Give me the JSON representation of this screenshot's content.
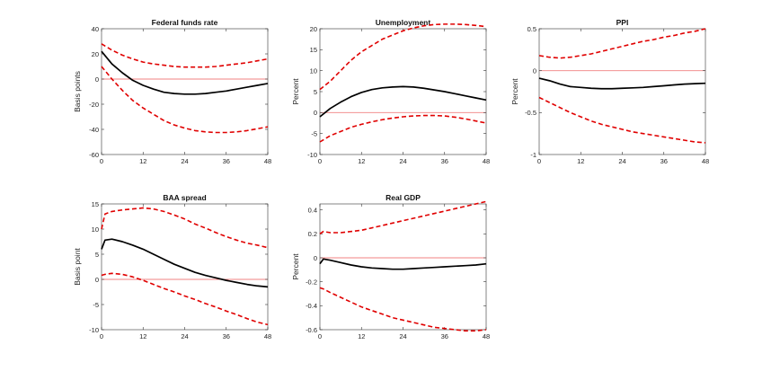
{
  "figure": {
    "colors": {
      "response": "#000000",
      "band": "#e00000",
      "zero_line": "#f08080",
      "axis": "#333333"
    }
  },
  "chart_data": [
    {
      "type": "line",
      "title": "Federal funds rate",
      "xlabel": "",
      "ylabel": "Basis points",
      "xlim": [
        0,
        48
      ],
      "ylim": [
        -60,
        40
      ],
      "xticks": [
        0,
        12,
        24,
        36,
        48
      ],
      "yticks": [
        -60,
        -40,
        -20,
        0,
        20,
        40
      ],
      "zero_line": 0,
      "series": [
        {
          "name": "response",
          "style": "solid",
          "x": [
            0,
            3,
            6,
            9,
            12,
            15,
            18,
            21,
            24,
            27,
            30,
            33,
            36,
            39,
            42,
            45,
            48
          ],
          "values": [
            22,
            12,
            5,
            -1,
            -5,
            -8,
            -10.5,
            -11.5,
            -12,
            -12,
            -11.5,
            -10.5,
            -9.5,
            -8,
            -6.5,
            -5,
            -3.5
          ]
        },
        {
          "name": "upper band",
          "style": "dashed",
          "x": [
            0,
            3,
            6,
            9,
            12,
            15,
            18,
            21,
            24,
            27,
            30,
            33,
            36,
            39,
            42,
            45,
            48
          ],
          "values": [
            28,
            23,
            19,
            16,
            13.5,
            12,
            11,
            10,
            9.5,
            9.5,
            9.5,
            10,
            11,
            12,
            13,
            14.5,
            16
          ]
        },
        {
          "name": "lower band",
          "style": "dashed",
          "x": [
            0,
            3,
            6,
            9,
            12,
            15,
            18,
            21,
            24,
            27,
            30,
            33,
            36,
            39,
            42,
            45,
            48
          ],
          "values": [
            10,
            0,
            -9,
            -17,
            -23,
            -28,
            -33,
            -36.5,
            -39,
            -41,
            -42,
            -42.5,
            -42.5,
            -42,
            -41,
            -39.5,
            -38
          ]
        }
      ]
    },
    {
      "type": "line",
      "title": "Unemployment",
      "xlabel": "",
      "ylabel": "Percent",
      "xlim": [
        0,
        48
      ],
      "ylim": [
        -10,
        20
      ],
      "xticks": [
        0,
        12,
        24,
        36,
        48
      ],
      "yticks": [
        -10,
        -5,
        0,
        5,
        10,
        15,
        20
      ],
      "zero_line": 0,
      "series": [
        {
          "name": "response",
          "style": "solid",
          "x": [
            0,
            3,
            6,
            9,
            12,
            15,
            18,
            21,
            24,
            27,
            30,
            33,
            36,
            39,
            42,
            45,
            48
          ],
          "values": [
            -1,
            1,
            2.5,
            3.8,
            4.8,
            5.5,
            5.9,
            6.1,
            6.2,
            6.1,
            5.8,
            5.4,
            5,
            4.5,
            4,
            3.5,
            3
          ]
        },
        {
          "name": "upper band",
          "style": "dashed",
          "x": [
            0,
            3,
            6,
            9,
            12,
            15,
            18,
            21,
            24,
            27,
            30,
            33,
            36,
            39,
            42,
            45,
            48
          ],
          "values": [
            5.5,
            7.5,
            10,
            12.5,
            14.5,
            16,
            17.5,
            18.5,
            19.5,
            20.2,
            20.7,
            21,
            21.1,
            21.1,
            21,
            20.8,
            20.5
          ]
        },
        {
          "name": "lower band",
          "style": "dashed",
          "x": [
            0,
            3,
            6,
            9,
            12,
            15,
            18,
            21,
            24,
            27,
            30,
            33,
            36,
            39,
            42,
            45,
            48
          ],
          "values": [
            -7,
            -5.5,
            -4.5,
            -3.5,
            -2.8,
            -2.2,
            -1.7,
            -1.3,
            -1,
            -0.8,
            -0.7,
            -0.7,
            -0.8,
            -1.1,
            -1.5,
            -2,
            -2.5
          ]
        }
      ]
    },
    {
      "type": "line",
      "title": "PPI",
      "xlabel": "",
      "ylabel": "Percent",
      "xlim": [
        0,
        48
      ],
      "ylim": [
        -1,
        0.5
      ],
      "xticks": [
        0,
        12,
        24,
        36,
        48
      ],
      "yticks": [
        -1,
        -0.5,
        0,
        0.5
      ],
      "ytick_labels": [
        "-1",
        "-0.5",
        "0",
        "0.5"
      ],
      "zero_line": 0,
      "series": [
        {
          "name": "response",
          "style": "solid",
          "x": [
            0,
            3,
            6,
            9,
            12,
            15,
            18,
            21,
            24,
            27,
            30,
            33,
            36,
            39,
            42,
            45,
            48
          ],
          "values": [
            -0.09,
            -0.12,
            -0.16,
            -0.19,
            -0.2,
            -0.21,
            -0.215,
            -0.215,
            -0.21,
            -0.205,
            -0.2,
            -0.19,
            -0.18,
            -0.17,
            -0.16,
            -0.155,
            -0.15
          ]
        },
        {
          "name": "upper band",
          "style": "dashed",
          "x": [
            0,
            3,
            6,
            9,
            12,
            15,
            18,
            21,
            24,
            27,
            30,
            33,
            36,
            39,
            42,
            45,
            48
          ],
          "values": [
            0.18,
            0.16,
            0.15,
            0.16,
            0.18,
            0.2,
            0.23,
            0.26,
            0.29,
            0.32,
            0.35,
            0.37,
            0.4,
            0.42,
            0.45,
            0.47,
            0.5
          ]
        },
        {
          "name": "lower band",
          "style": "dashed",
          "x": [
            0,
            3,
            6,
            9,
            12,
            15,
            18,
            21,
            24,
            27,
            30,
            33,
            36,
            39,
            42,
            45,
            48
          ],
          "values": [
            -0.32,
            -0.38,
            -0.44,
            -0.5,
            -0.55,
            -0.6,
            -0.64,
            -0.67,
            -0.7,
            -0.73,
            -0.75,
            -0.77,
            -0.79,
            -0.81,
            -0.83,
            -0.85,
            -0.86
          ]
        }
      ]
    },
    {
      "type": "line",
      "title": "BAA spread",
      "xlabel": "",
      "ylabel": "Basis point",
      "xlim": [
        0,
        48
      ],
      "ylim": [
        -10,
        15
      ],
      "xticks": [
        0,
        12,
        24,
        36,
        48
      ],
      "yticks": [
        -10,
        -5,
        0,
        5,
        10,
        15
      ],
      "zero_line": 0,
      "series": [
        {
          "name": "response",
          "style": "solid",
          "x": [
            0,
            1,
            3,
            6,
            9,
            12,
            15,
            18,
            21,
            24,
            27,
            30,
            33,
            36,
            39,
            42,
            45,
            48
          ],
          "values": [
            6,
            7.8,
            8,
            7.5,
            6.8,
            6,
            5,
            4,
            3,
            2.2,
            1.4,
            0.8,
            0.3,
            -0.2,
            -0.6,
            -1,
            -1.3,
            -1.5
          ]
        },
        {
          "name": "upper band",
          "style": "dashed",
          "x": [
            0,
            1,
            3,
            6,
            9,
            12,
            15,
            18,
            21,
            24,
            27,
            30,
            33,
            36,
            39,
            42,
            45,
            48
          ],
          "values": [
            10,
            13,
            13.5,
            13.8,
            14,
            14.2,
            14,
            13.5,
            12.8,
            12,
            11,
            10.2,
            9.3,
            8.5,
            7.8,
            7.2,
            6.8,
            6.3
          ]
        },
        {
          "name": "lower band",
          "style": "dashed",
          "x": [
            0,
            1,
            3,
            6,
            9,
            12,
            15,
            18,
            21,
            24,
            27,
            30,
            33,
            36,
            39,
            42,
            45,
            48
          ],
          "values": [
            0.8,
            1,
            1.2,
            1,
            0.5,
            -0.2,
            -1,
            -1.8,
            -2.5,
            -3.3,
            -4,
            -4.8,
            -5.5,
            -6.3,
            -7,
            -7.8,
            -8.5,
            -9
          ]
        }
      ]
    },
    {
      "type": "line",
      "title": "Real GDP",
      "xlabel": "",
      "ylabel": "Percent",
      "xlim": [
        0,
        48
      ],
      "ylim": [
        -0.6,
        0.45
      ],
      "xticks": [
        0,
        12,
        24,
        36,
        48
      ],
      "yticks": [
        -0.6,
        -0.4,
        -0.2,
        0,
        0.2,
        0.4
      ],
      "ytick_labels": [
        "-0.6",
        "-0.4",
        "-0.2",
        "0",
        "0.2",
        "0.4"
      ],
      "zero_line": 0,
      "series": [
        {
          "name": "response",
          "style": "solid",
          "x": [
            0,
            1,
            3,
            6,
            9,
            12,
            15,
            18,
            21,
            24,
            27,
            30,
            33,
            36,
            39,
            42,
            45,
            48
          ],
          "values": [
            -0.05,
            -0.01,
            -0.02,
            -0.04,
            -0.06,
            -0.075,
            -0.085,
            -0.09,
            -0.095,
            -0.095,
            -0.09,
            -0.085,
            -0.08,
            -0.075,
            -0.07,
            -0.065,
            -0.06,
            -0.05
          ]
        },
        {
          "name": "upper band",
          "style": "dashed",
          "x": [
            0,
            1,
            3,
            6,
            9,
            12,
            15,
            18,
            21,
            24,
            27,
            30,
            33,
            36,
            39,
            42,
            45,
            48
          ],
          "values": [
            0.2,
            0.22,
            0.21,
            0.21,
            0.22,
            0.23,
            0.25,
            0.27,
            0.29,
            0.31,
            0.33,
            0.35,
            0.37,
            0.39,
            0.41,
            0.43,
            0.45,
            0.47
          ]
        },
        {
          "name": "lower band",
          "style": "dashed",
          "x": [
            0,
            1,
            3,
            6,
            9,
            12,
            15,
            18,
            21,
            24,
            27,
            30,
            33,
            36,
            39,
            42,
            45,
            48
          ],
          "values": [
            -0.25,
            -0.26,
            -0.29,
            -0.33,
            -0.37,
            -0.41,
            -0.44,
            -0.47,
            -0.5,
            -0.52,
            -0.54,
            -0.56,
            -0.58,
            -0.59,
            -0.6,
            -0.61,
            -0.61,
            -0.6
          ]
        }
      ]
    }
  ]
}
